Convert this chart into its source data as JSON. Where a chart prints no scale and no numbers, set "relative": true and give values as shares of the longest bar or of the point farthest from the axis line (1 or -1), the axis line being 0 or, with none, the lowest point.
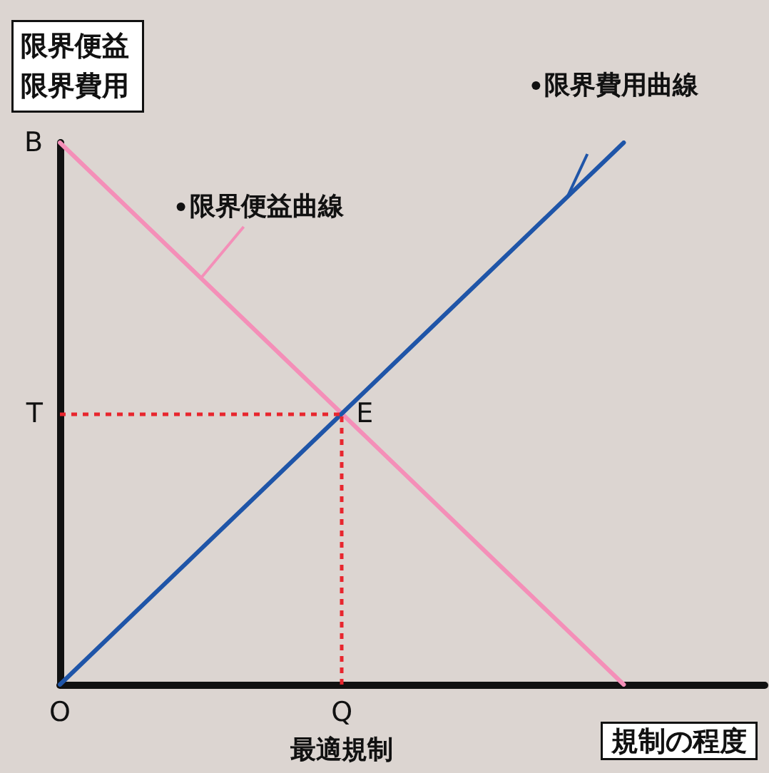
{
  "chart_data": {
    "type": "line",
    "relative": true,
    "ylabel": "限界便益限界費用",
    "xlabel": "規制の程度",
    "categories": [
      "O",
      null,
      "Q",
      null,
      null,
      null
    ],
    "tick_labels": "x",
    "grid": false,
    "legend": false,
    "marker": "none",
    "series": [
      {
        "name": "限界便益曲線",
        "color": "#f48fb8",
        "values": [
          1,
          null,
          0.5,
          null,
          0,
          null
        ]
      },
      {
        "name": "限界費用曲線",
        "color": "#1f55a8",
        "values": [
          0,
          null,
          0.5,
          null,
          1,
          null
        ]
      }
    ],
    "ref_lines": [
      {
        "axis": "y",
        "value": 0.5,
        "color": "#e8262e",
        "line_style": "dotted"
      },
      {
        "axis": "x",
        "value": "Q",
        "color": "#e8262e",
        "line_style": "dotted"
      }
    ],
    "annotations": [
      {
        "text": "B",
        "x": "O",
        "y": 1
      },
      {
        "text": "T",
        "x": "O",
        "y": 0.5
      },
      {
        "text": "E",
        "x": "Q",
        "y": 0.5
      },
      "最適規制"
    ]
  }
}
